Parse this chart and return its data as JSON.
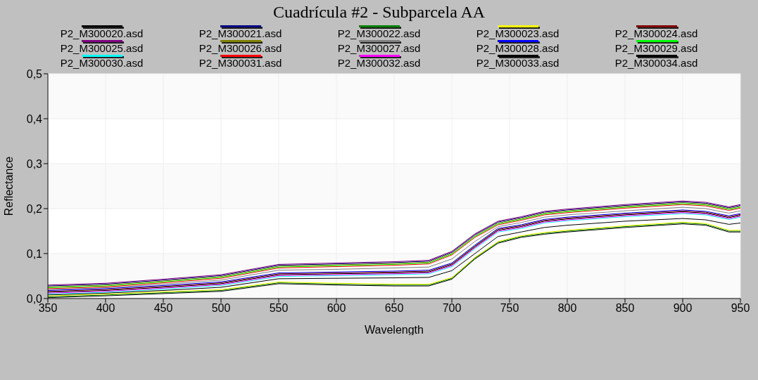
{
  "chart_data": {
    "type": "line",
    "title": "Cuadrícula #2 - Subparcela AA",
    "xlabel": "Wavelength",
    "ylabel": "Reflectance",
    "x": [
      350,
      400,
      450,
      500,
      550,
      600,
      650,
      680,
      700,
      720,
      740,
      760,
      780,
      800,
      850,
      900,
      920,
      940,
      950
    ],
    "series": [
      {
        "name": "P2_M300020.asd",
        "color": "#000000",
        "values": [
          0.014,
          0.018,
          0.025,
          0.033,
          0.053,
          0.055,
          0.057,
          0.059,
          0.075,
          0.115,
          0.152,
          0.16,
          0.172,
          0.177,
          0.186,
          0.193,
          0.19,
          0.18,
          0.185
        ]
      },
      {
        "name": "P2_M300021.asd",
        "color": "#000080",
        "values": [
          0.028,
          0.032,
          0.041,
          0.051,
          0.074,
          0.077,
          0.08,
          0.083,
          0.103,
          0.142,
          0.17,
          0.18,
          0.192,
          0.197,
          0.207,
          0.215,
          0.212,
          0.202,
          0.207
        ]
      },
      {
        "name": "P2_M300022.asd",
        "color": "#008000",
        "values": [
          0.004,
          0.008,
          0.013,
          0.018,
          0.035,
          0.032,
          0.03,
          0.03,
          0.045,
          0.09,
          0.125,
          0.138,
          0.145,
          0.15,
          0.16,
          0.168,
          0.165,
          0.15,
          0.15
        ]
      },
      {
        "name": "P2_M300023.asd",
        "color": "#ffff00",
        "values": [
          0.006,
          0.01,
          0.015,
          0.02,
          0.037,
          0.034,
          0.032,
          0.032,
          0.047,
          0.092,
          0.127,
          0.14,
          0.147,
          0.152,
          0.162,
          0.17,
          0.167,
          0.152,
          0.152
        ]
      },
      {
        "name": "P2_M300024.asd",
        "color": "#800000",
        "values": [
          0.016,
          0.02,
          0.027,
          0.035,
          0.055,
          0.057,
          0.059,
          0.061,
          0.077,
          0.117,
          0.154,
          0.162,
          0.174,
          0.179,
          0.188,
          0.195,
          0.192,
          0.182,
          0.187
        ]
      },
      {
        "name": "P2_M300025.asd",
        "color": "#800080",
        "values": [
          0.03,
          0.034,
          0.043,
          0.053,
          0.076,
          0.079,
          0.082,
          0.085,
          0.105,
          0.144,
          0.172,
          0.182,
          0.194,
          0.199,
          0.209,
          0.217,
          0.214,
          0.204,
          0.209
        ]
      },
      {
        "name": "P2_M300026.asd",
        "color": "#808000",
        "values": [
          0.026,
          0.03,
          0.039,
          0.049,
          0.072,
          0.075,
          0.078,
          0.081,
          0.101,
          0.14,
          0.168,
          0.178,
          0.19,
          0.195,
          0.205,
          0.213,
          0.21,
          0.2,
          0.205
        ]
      },
      {
        "name": "P2_M300027.asd",
        "color": "#808080",
        "values": [
          0.02,
          0.024,
          0.032,
          0.041,
          0.063,
          0.065,
          0.068,
          0.07,
          0.088,
          0.127,
          0.16,
          0.169,
          0.181,
          0.186,
          0.195,
          0.203,
          0.2,
          0.19,
          0.195
        ]
      },
      {
        "name": "P2_M300028.asd",
        "color": "#0000ff",
        "values": [
          0.018,
          0.022,
          0.029,
          0.037,
          0.057,
          0.059,
          0.061,
          0.063,
          0.079,
          0.119,
          0.156,
          0.164,
          0.176,
          0.181,
          0.19,
          0.197,
          0.194,
          0.184,
          0.189
        ]
      },
      {
        "name": "P2_M300029.asd",
        "color": "#00ff00",
        "values": [
          0.024,
          0.028,
          0.037,
          0.047,
          0.07,
          0.073,
          0.076,
          0.079,
          0.099,
          0.138,
          0.166,
          0.176,
          0.188,
          0.193,
          0.203,
          0.211,
          0.208,
          0.198,
          0.203
        ]
      },
      {
        "name": "P2_M300030.asd",
        "color": "#00ffff",
        "values": [
          0.01,
          0.014,
          0.021,
          0.029,
          0.049,
          0.051,
          0.053,
          0.055,
          0.071,
          0.111,
          0.148,
          0.156,
          0.168,
          0.173,
          0.182,
          0.189,
          0.186,
          0.176,
          0.181
        ]
      },
      {
        "name": "P2_M300031.asd",
        "color": "#ff0000",
        "values": [
          0.022,
          0.026,
          0.035,
          0.045,
          0.068,
          0.071,
          0.074,
          0.077,
          0.097,
          0.136,
          0.164,
          0.174,
          0.186,
          0.191,
          0.201,
          0.209,
          0.206,
          0.196,
          0.201
        ]
      },
      {
        "name": "P2_M300032.asd",
        "color": "#ff00ff",
        "values": [
          0.012,
          0.016,
          0.023,
          0.031,
          0.051,
          0.053,
          0.055,
          0.057,
          0.073,
          0.113,
          0.15,
          0.158,
          0.17,
          0.175,
          0.184,
          0.191,
          0.188,
          0.178,
          0.183
        ]
      },
      {
        "name": "P2_M300033.asd",
        "color": "#000000",
        "values": [
          0.008,
          0.012,
          0.018,
          0.025,
          0.044,
          0.045,
          0.046,
          0.047,
          0.062,
          0.1,
          0.138,
          0.148,
          0.158,
          0.163,
          0.172,
          0.178,
          0.175,
          0.165,
          0.168
        ]
      },
      {
        "name": "P2_M300034.asd",
        "color": "#000000",
        "values": [
          0.002,
          0.006,
          0.011,
          0.016,
          0.033,
          0.03,
          0.028,
          0.028,
          0.043,
          0.088,
          0.123,
          0.136,
          0.143,
          0.148,
          0.158,
          0.166,
          0.163,
          0.148,
          0.148
        ]
      }
    ],
    "xlim": [
      350,
      950
    ],
    "xticks": [
      350,
      400,
      450,
      500,
      550,
      600,
      650,
      700,
      750,
      800,
      850,
      900,
      950
    ],
    "ylim": [
      0,
      0.5
    ],
    "yticks": [
      {
        "value": 0,
        "label": "0,0"
      },
      {
        "value": 0.1,
        "label": "0,1"
      },
      {
        "value": 0.2,
        "label": "0,2"
      },
      {
        "value": 0.3,
        "label": "0,3"
      },
      {
        "value": 0.4,
        "label": "0,4"
      },
      {
        "value": 0.5,
        "label": "0,5"
      }
    ],
    "grid": true,
    "legend": "top",
    "marker": "none",
    "line_style": "solid"
  }
}
